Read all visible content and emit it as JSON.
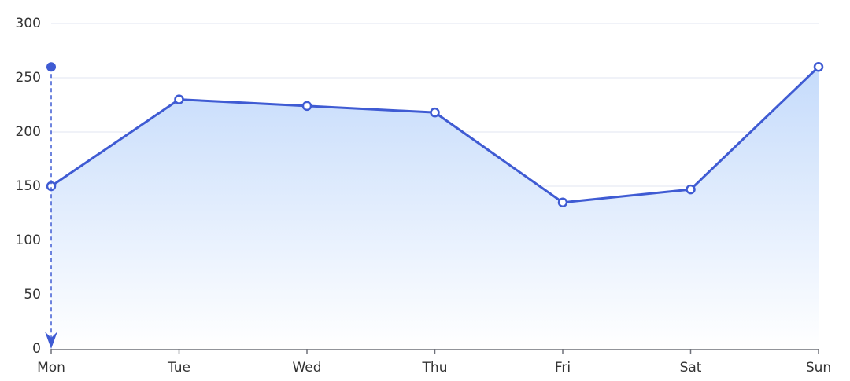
{
  "chart_data": {
    "type": "line",
    "categories": [
      "Mon",
      "Tue",
      "Wed",
      "Thu",
      "Fri",
      "Sat",
      "Sun"
    ],
    "series": [
      {
        "color": "#3f5bd3",
        "values": [
          150,
          230,
          224,
          218,
          135,
          147,
          260
        ]
      }
    ],
    "area": true,
    "mark_line": {
      "category": "Mon",
      "start": 260,
      "end": 0
    },
    "ylim": [
      0,
      300
    ],
    "yticks": [
      0,
      50,
      100,
      150,
      200,
      250,
      300
    ],
    "grid": true
  }
}
